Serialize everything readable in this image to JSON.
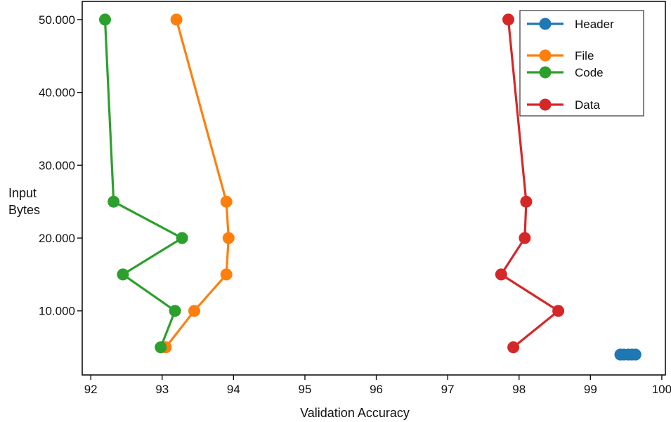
{
  "chart_data": {
    "type": "line",
    "xlabel": "Validation Accuracy",
    "ylabel_lines": [
      "Input",
      "Bytes"
    ],
    "xlim": [
      91.88,
      100.05
    ],
    "ylim": [
      1200,
      52500
    ],
    "x_ticks": [
      92,
      93,
      94,
      95,
      96,
      97,
      98,
      99,
      100
    ],
    "x_tick_labels": [
      "92",
      "93",
      "94",
      "95",
      "96",
      "97",
      "98",
      "99",
      "100"
    ],
    "y_ticks": [
      10000,
      20000,
      30000,
      40000,
      50000
    ],
    "y_tick_labels": [
      "10.000",
      "20.000",
      "30.000",
      "40.000",
      "50.000"
    ],
    "legend_position": "top-right",
    "grid": false,
    "series": [
      {
        "name": "Header",
        "color": "#1f77b4",
        "points": [
          [
            99.42,
            4000
          ],
          [
            99.47,
            4000
          ],
          [
            99.53,
            4000
          ],
          [
            99.58,
            4000
          ],
          [
            99.63,
            4000
          ]
        ]
      },
      {
        "name": "File",
        "color": "#ff7f0e",
        "points": [
          [
            93.05,
            5000
          ],
          [
            93.45,
            10000
          ],
          [
            93.9,
            15000
          ],
          [
            93.93,
            20000
          ],
          [
            93.9,
            25000
          ],
          [
            93.2,
            50000
          ]
        ]
      },
      {
        "name": "Code",
        "color": "#2ca02c",
        "points": [
          [
            92.98,
            5000
          ],
          [
            93.18,
            10000
          ],
          [
            92.45,
            15000
          ],
          [
            93.28,
            20000
          ],
          [
            92.32,
            25000
          ],
          [
            92.2,
            50000
          ]
        ]
      },
      {
        "name": "Data",
        "color": "#d62728",
        "points": [
          [
            97.92,
            5000
          ],
          [
            98.55,
            10000
          ],
          [
            97.75,
            15000
          ],
          [
            98.08,
            20000
          ],
          [
            98.1,
            25000
          ],
          [
            97.85,
            50000
          ]
        ]
      }
    ]
  }
}
